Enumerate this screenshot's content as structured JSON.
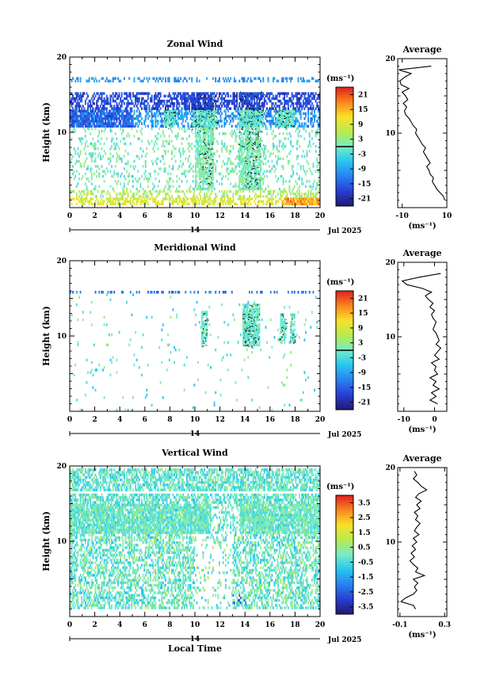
{
  "chart_data": [
    {
      "type": "heatmap",
      "title": "Zonal Wind",
      "ylabel": "Height (km)",
      "xlabel": "",
      "x_ticks": [
        "0",
        "2",
        "4",
        "6",
        "8",
        "10",
        "12",
        "14",
        "16",
        "18",
        "20"
      ],
      "y_ticks": [
        "10",
        "20"
      ],
      "xlim": [
        0,
        20
      ],
      "ylim": [
        0,
        20
      ],
      "date_marker": "14",
      "date_label": "Jul 2025",
      "colorbar": {
        "unit": "(ms⁻¹)",
        "ticks": [
          "21",
          "15",
          "9",
          "3",
          "-3",
          "-9",
          "-15",
          "-21"
        ],
        "range": [
          -24,
          24
        ],
        "contour_level": 0
      },
      "average_profile": {
        "title": "Average",
        "x_ticks": [
          "-10",
          "10"
        ],
        "y_ticks": [
          "10",
          "20"
        ],
        "xlim": [
          -12,
          10
        ],
        "unit": "(ms⁻¹)",
        "height": [
          1.0,
          1.5,
          2.0,
          2.5,
          3.0,
          3.5,
          4.0,
          4.5,
          5.0,
          5.5,
          6.0,
          6.5,
          7.0,
          7.5,
          8.0,
          8.5,
          9.0,
          9.5,
          10.0,
          10.5,
          11.0,
          11.5,
          12.0,
          12.5,
          13.0,
          13.5,
          14.0,
          14.5,
          15.0,
          15.5,
          16.0,
          16.5,
          17.0,
          17.5,
          18.0,
          18.5,
          19.0
        ],
        "value": [
          9.0,
          8.5,
          7.0,
          5.5,
          4.5,
          3.5,
          4.0,
          2.5,
          2.0,
          1.0,
          2.5,
          1.5,
          0.5,
          -0.5,
          0.5,
          -1.0,
          -2.0,
          -3.0,
          -4.0,
          -3.5,
          -5.0,
          -6.0,
          -7.0,
          -8.5,
          -9.0,
          -8.0,
          -9.5,
          -7.5,
          -8.5,
          -10.0,
          -7.0,
          -10.5,
          -11.0,
          -9.0,
          -6.0,
          -11.5,
          3.0
        ]
      }
    },
    {
      "type": "heatmap",
      "title": "Meridional Wind",
      "ylabel": "Height (km)",
      "xlabel": "",
      "x_ticks": [
        "0",
        "2",
        "4",
        "6",
        "8",
        "10",
        "12",
        "14",
        "16",
        "18",
        "20"
      ],
      "y_ticks": [
        "10",
        "20"
      ],
      "xlim": [
        0,
        20
      ],
      "ylim": [
        0,
        20
      ],
      "date_marker": "14",
      "date_label": "Jul 2025",
      "colorbar": {
        "unit": "(ms⁻¹)",
        "ticks": [
          "21",
          "15",
          "9",
          "3",
          "-3",
          "-9",
          "-15",
          "-21"
        ],
        "range": [
          -24,
          24
        ],
        "contour_level": 0
      },
      "average_profile": {
        "title": "Average",
        "x_ticks": [
          "-10",
          "0"
        ],
        "y_ticks": [
          "10",
          "20"
        ],
        "xlim": [
          -12,
          4
        ],
        "unit": "(ms⁻¹)",
        "height": [
          1.0,
          1.5,
          2.0,
          2.5,
          3.0,
          3.5,
          4.0,
          4.5,
          5.0,
          5.5,
          6.0,
          6.5,
          7.0,
          7.5,
          8.0,
          8.5,
          9.0,
          9.5,
          10.0,
          10.5,
          11.0,
          11.5,
          12.0,
          12.5,
          13.0,
          13.5,
          14.0,
          14.5,
          15.0,
          15.5,
          16.0,
          16.5,
          17.0,
          17.5,
          18.0,
          18.5
        ],
        "value": [
          1.0,
          -1.5,
          0.5,
          -1.0,
          1.5,
          -0.5,
          0.5,
          -1.5,
          1.0,
          0.0,
          0.5,
          -1.0,
          1.5,
          0.0,
          1.0,
          2.0,
          0.5,
          1.5,
          1.0,
          0.5,
          -0.5,
          0.0,
          0.5,
          -0.5,
          -1.0,
          0.0,
          -1.5,
          -0.5,
          -2.0,
          -3.0,
          -1.0,
          -4.0,
          -9.0,
          -10.5,
          -5.0,
          2.0
        ]
      }
    },
    {
      "type": "heatmap",
      "title": "Vertical Wind",
      "ylabel": "Height (km)",
      "xlabel": "Local Time",
      "x_ticks": [
        "0",
        "2",
        "4",
        "6",
        "8",
        "10",
        "12",
        "14",
        "16",
        "18",
        "20"
      ],
      "y_ticks": [
        "10",
        "20"
      ],
      "xlim": [
        0,
        20
      ],
      "ylim": [
        0,
        20
      ],
      "date_marker": "14",
      "date_label": "Jul 2025",
      "colorbar": {
        "unit": "(ms⁻¹)",
        "ticks": [
          "3.5",
          "2.5",
          "1.5",
          "0.5",
          "-0.5",
          "-1.5",
          "-2.5",
          "-3.5"
        ],
        "range": [
          -4,
          4
        ]
      },
      "average_profile": {
        "title": "Average",
        "x_ticks": [
          "-0.1",
          "0.3"
        ],
        "y_ticks": [
          "10",
          "20"
        ],
        "xlim": [
          -0.12,
          0.32
        ],
        "unit": "(ms⁻¹)",
        "height": [
          1.0,
          1.5,
          2.0,
          2.5,
          3.0,
          3.5,
          4.0,
          4.5,
          5.0,
          5.5,
          6.0,
          6.5,
          7.0,
          7.5,
          8.0,
          8.5,
          9.0,
          9.5,
          10.0,
          10.5,
          11.0,
          11.5,
          12.0,
          12.5,
          13.0,
          13.5,
          14.0,
          14.5,
          15.0,
          15.5,
          16.0,
          16.5,
          17.0,
          17.5,
          18.0,
          18.5,
          19.0,
          19.5
        ],
        "value": [
          0.04,
          0.02,
          -0.09,
          -0.05,
          0.02,
          0.05,
          0.03,
          0.06,
          0.02,
          0.12,
          0.04,
          0.06,
          0.02,
          -0.01,
          0.03,
          0.0,
          0.04,
          0.01,
          0.05,
          0.02,
          0.07,
          0.03,
          0.05,
          0.08,
          0.04,
          0.06,
          0.03,
          0.08,
          0.05,
          0.09,
          0.04,
          0.07,
          0.14,
          0.09,
          0.06,
          0.02,
          0.05,
          0.03
        ]
      }
    }
  ]
}
